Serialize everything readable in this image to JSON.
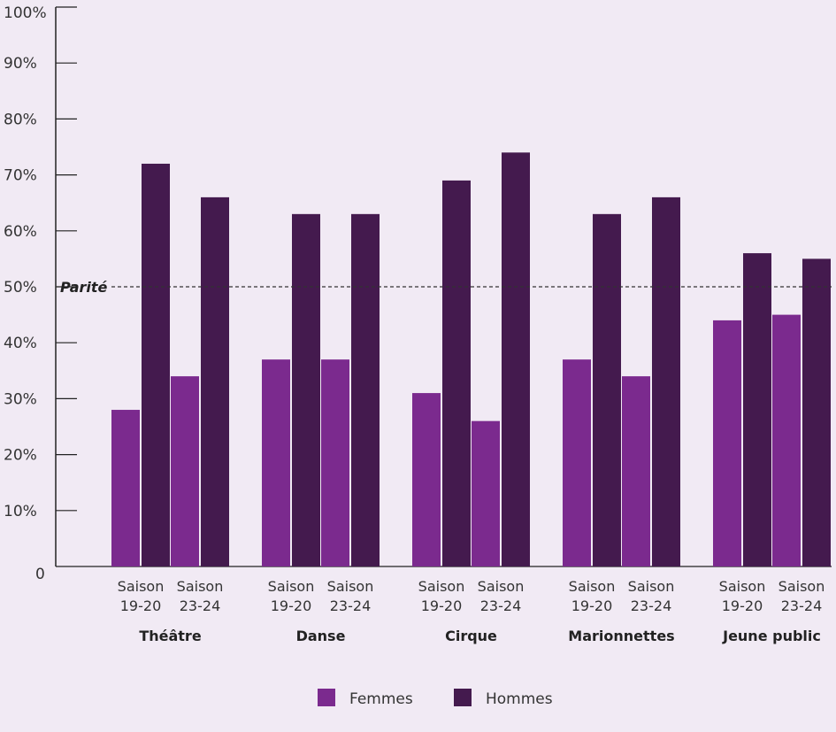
{
  "chart_data": {
    "type": "bar",
    "categories": [
      "Théâtre",
      "Danse",
      "Cirque",
      "Marionnettes",
      "Jeune public"
    ],
    "groups": [
      "Saison 19-20",
      "Saison 23-24"
    ],
    "group_label_lines": [
      [
        "Saison",
        "19-20"
      ],
      [
        "Saison",
        "23-24"
      ]
    ],
    "series": [
      {
        "name": "Femmes",
        "color": "#7B2A8E",
        "values": [
          [
            28,
            34
          ],
          [
            37,
            37
          ],
          [
            31,
            26
          ],
          [
            37,
            34
          ],
          [
            44,
            45
          ]
        ]
      },
      {
        "name": "Hommes",
        "color": "#441A4E",
        "values": [
          [
            72,
            66
          ],
          [
            63,
            63
          ],
          [
            69,
            74
          ],
          [
            63,
            66
          ],
          [
            56,
            55
          ]
        ]
      }
    ],
    "y_ticks": [
      0,
      10,
      20,
      30,
      40,
      50,
      60,
      70,
      80,
      90,
      100
    ],
    "y_tick_labels": [
      "0",
      "10%",
      "20%",
      "30%",
      "40%",
      "50%",
      "60%",
      "70%",
      "80%",
      "90%",
      "100%"
    ],
    "ylim": [
      0,
      100
    ],
    "reference_line": {
      "value": 50,
      "label": "Parité"
    },
    "legend_position": "bottom-center",
    "grid": false
  }
}
